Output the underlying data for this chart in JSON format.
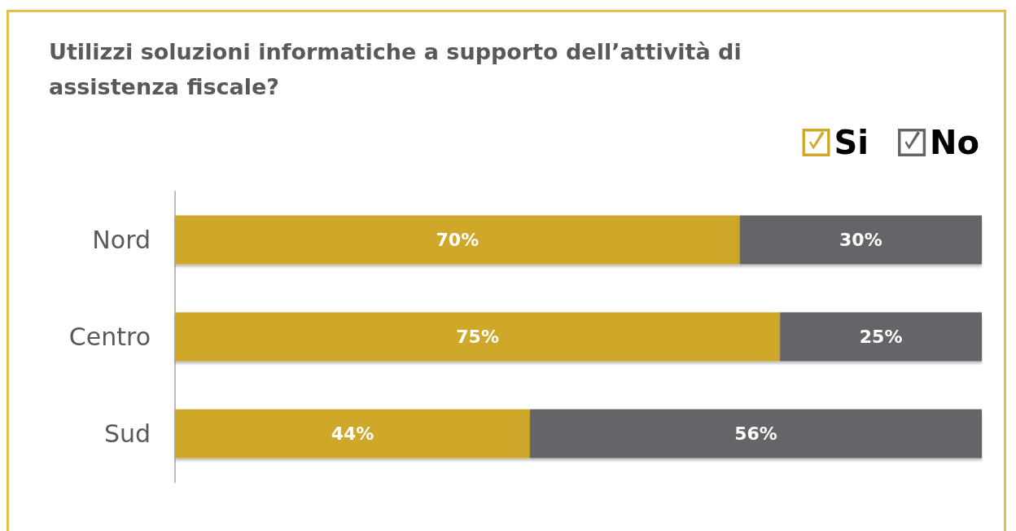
{
  "chart_data": {
    "type": "bar",
    "orientation": "horizontal",
    "stacked": true,
    "title": "Utilizzi soluzioni informatiche a supporto dell’attività di assistenza fiscale?",
    "categories": [
      "Nord",
      "Centro",
      "Sud"
    ],
    "series": [
      {
        "name": "Si",
        "color": "#cfa82a",
        "values": [
          70,
          75,
          44
        ],
        "value_labels": [
          "70%",
          "75%",
          "44%"
        ]
      },
      {
        "name": "No",
        "color": "#646567",
        "values": [
          30,
          25,
          56
        ],
        "value_labels": [
          "30%",
          "25%",
          "56%"
        ]
      }
    ],
    "xlim": [
      0,
      100
    ],
    "tick_labels": "y",
    "grid": false,
    "legend": "top right"
  }
}
